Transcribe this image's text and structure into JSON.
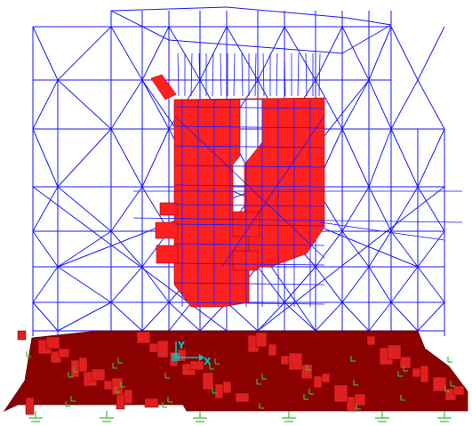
{
  "axes": {
    "y_label": "Y",
    "x_label": "X"
  }
}
